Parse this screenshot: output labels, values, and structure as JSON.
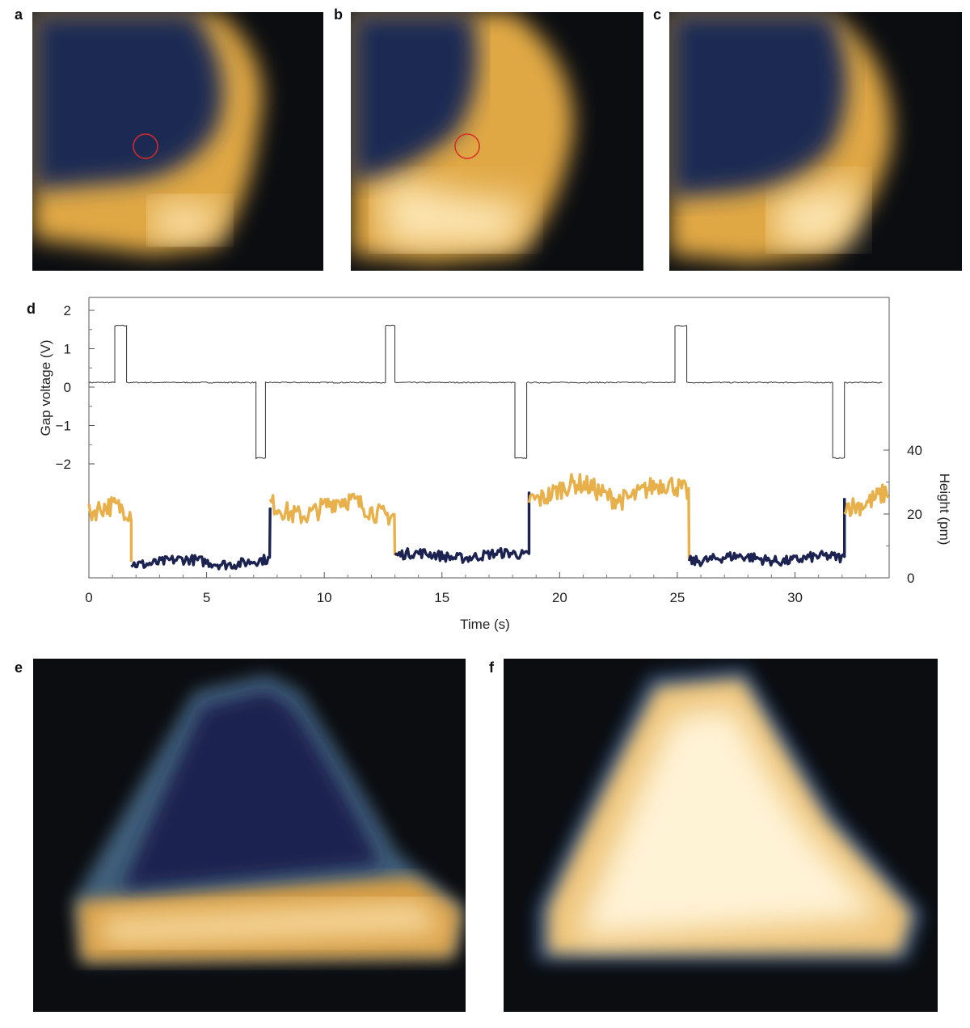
{
  "figure": {
    "panels": [
      {
        "id": "a",
        "letter": "a",
        "kind": "stm-image",
        "marker": "red-circle"
      },
      {
        "id": "b",
        "letter": "b",
        "kind": "stm-image",
        "marker": "red-circle"
      },
      {
        "id": "c",
        "letter": "c",
        "kind": "stm-image"
      },
      {
        "id": "d",
        "letter": "d",
        "kind": "chart"
      },
      {
        "id": "e",
        "letter": "e",
        "kind": "stm-image"
      },
      {
        "id": "f",
        "letter": "f",
        "kind": "stm-image"
      }
    ],
    "colors": {
      "dark_state": "#1c2350",
      "bright_state": "#e8b04a",
      "voltage_trace": "#333333",
      "marker": "#d92a2a",
      "image_background": "#0b0d11"
    }
  },
  "chart_data": {
    "type": "line",
    "xlabel": "Time (s)",
    "ylabel_left": "Gap voltage (V)",
    "ylabel_right": "Height (pm)",
    "xlim": [
      0,
      34
    ],
    "xticks": [
      0,
      5,
      10,
      15,
      20,
      25,
      30
    ],
    "yticks_left": [
      2,
      1,
      0,
      -1,
      -2
    ],
    "yticks_left_labels": [
      "2",
      "1",
      "0",
      "−1",
      "−2"
    ],
    "yticks_right": [
      0,
      20,
      40
    ],
    "grid": false,
    "voltage_pulses": [
      {
        "start": 1.1,
        "end": 1.6,
        "value": 1.6
      },
      {
        "start": 7.1,
        "end": 7.5,
        "value": -1.85
      },
      {
        "start": 12.6,
        "end": 13.0,
        "value": 1.6
      },
      {
        "start": 18.1,
        "end": 18.6,
        "value": -1.85
      },
      {
        "start": 24.9,
        "end": 25.4,
        "value": 1.6
      },
      {
        "start": 31.6,
        "end": 32.1,
        "value": -1.85
      }
    ],
    "voltage_baseline": 0.12,
    "height_segments": [
      {
        "state": "bright",
        "start": 0.0,
        "end": 1.8,
        "level": 20
      },
      {
        "state": "dark",
        "start": 1.8,
        "end": 7.7,
        "level": 5
      },
      {
        "state": "bright",
        "start": 7.7,
        "end": 13.0,
        "level": 22
      },
      {
        "state": "dark",
        "start": 13.0,
        "end": 18.7,
        "level": 7
      },
      {
        "state": "bright",
        "start": 18.7,
        "end": 25.5,
        "level": 27
      },
      {
        "state": "dark",
        "start": 25.5,
        "end": 32.1,
        "level": 6
      },
      {
        "state": "bright",
        "start": 32.1,
        "end": 34.0,
        "level": 25
      }
    ]
  }
}
